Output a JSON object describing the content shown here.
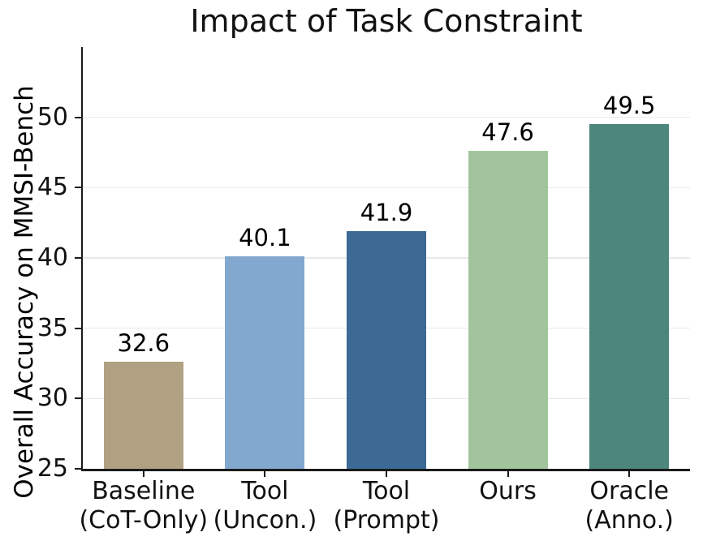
{
  "chart_data": {
    "type": "bar",
    "title": "Impact of Task Constraint",
    "xlabel": "",
    "ylabel": "Overall Accuracy on MMSI-Bench",
    "categories": [
      "Baseline\n(CoT-Only)",
      "Tool\n(Uncon.)",
      "Tool\n(Prompt)",
      "Ours",
      "Oracle\n(Anno.)"
    ],
    "values": [
      32.6,
      40.1,
      41.9,
      47.6,
      49.5
    ],
    "value_labels": [
      "32.6",
      "40.1",
      "41.9",
      "47.6",
      "49.5"
    ],
    "bar_colors": [
      "#b0a183",
      "#83a8d0",
      "#3c6a94",
      "#a2c49d",
      "#4d867c"
    ],
    "yticks": [
      25,
      30,
      35,
      40,
      45,
      50
    ],
    "ylim": [
      25,
      55
    ],
    "grid": true,
    "legend": "none",
    "spines": "left-bottom-only",
    "background_color": "#ffffff",
    "gridline_color": "#e9e9e9",
    "spine_color": "#1a1a1a",
    "text_color": "#000000"
  }
}
